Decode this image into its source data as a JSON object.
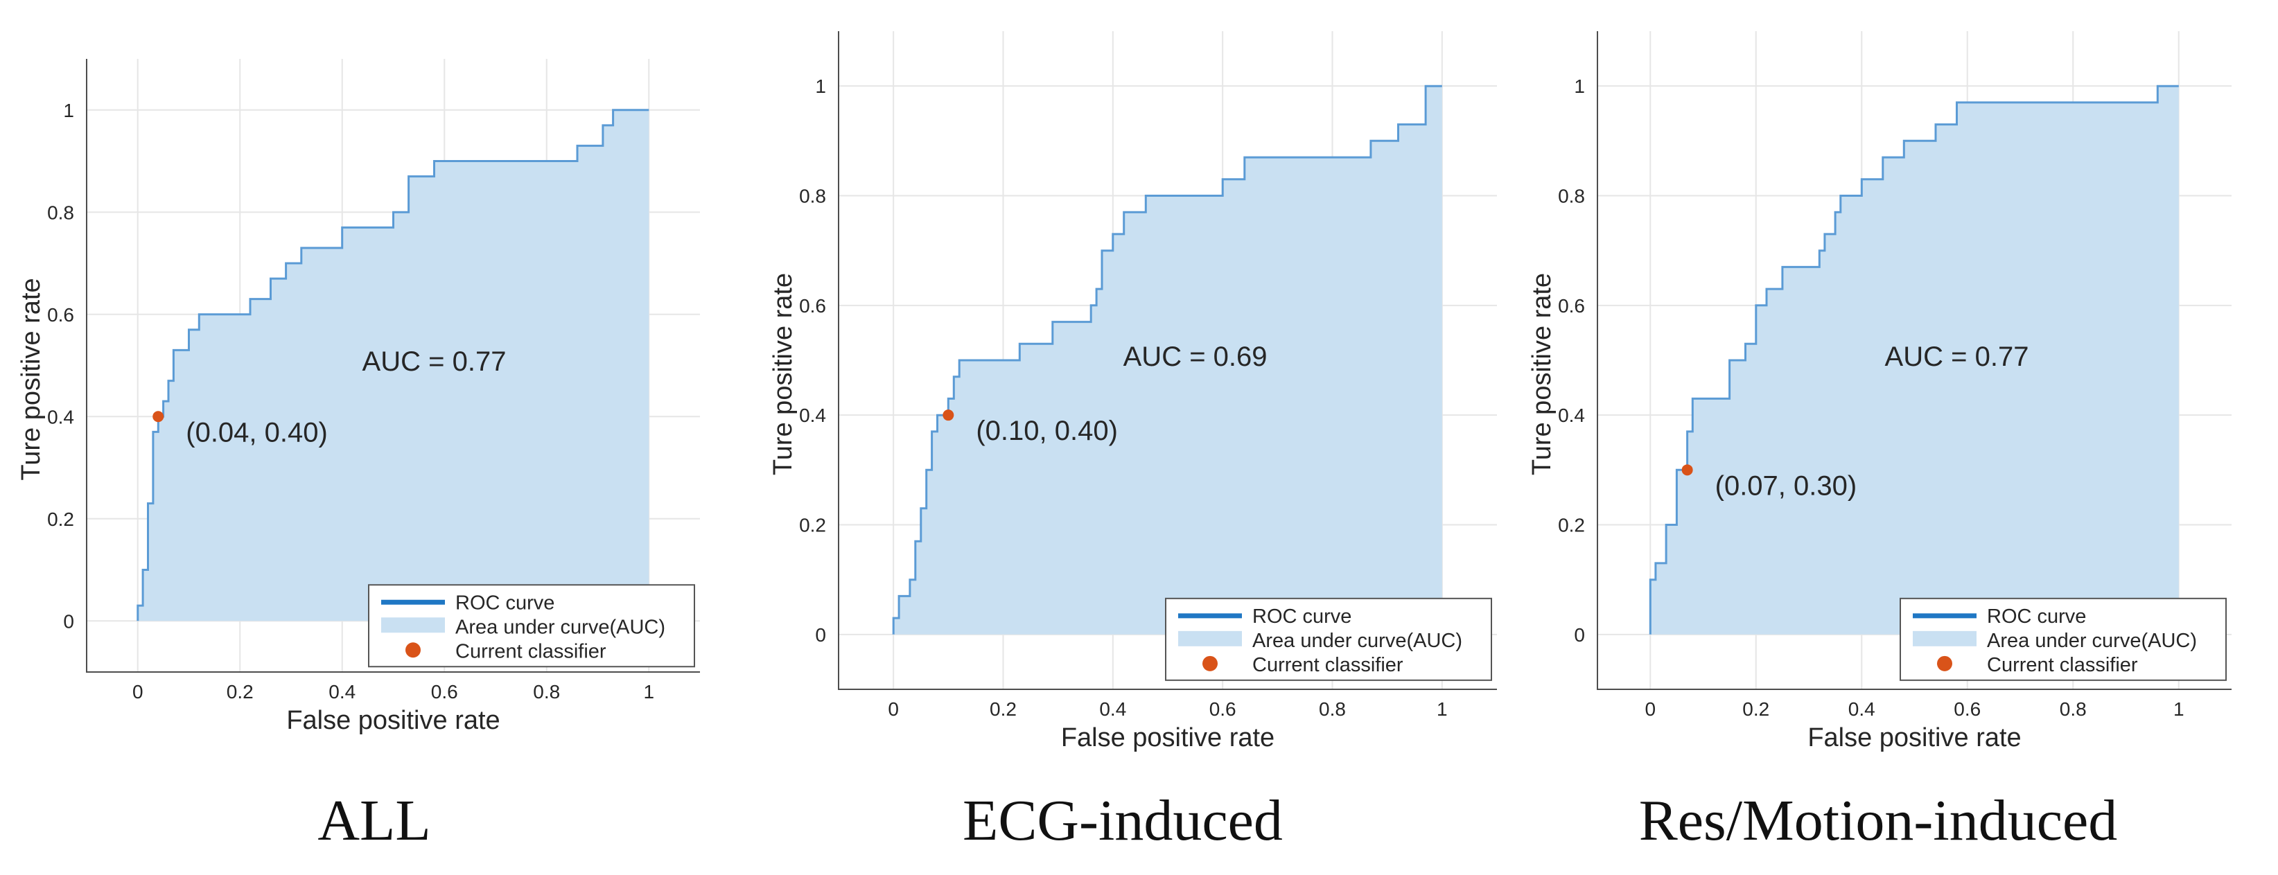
{
  "figure": {
    "colors": {
      "roc_line": "#5b9bd5",
      "auc_fill": "#c9e0f2",
      "legend_line": "#1f77c4",
      "classifier_marker": "#d95319",
      "axis": "#4d4d4d",
      "grid": "#e6e6e6"
    }
  },
  "chart_data": [
    {
      "type": "area",
      "caption": "ALL",
      "xlabel": "False positive rate",
      "ylabel": "Ture positive rate",
      "xlim": [
        -0.1,
        1.1
      ],
      "ylim": [
        -0.1,
        1.1
      ],
      "xticks": [
        "0",
        "0.2",
        "0.4",
        "0.6",
        "0.8",
        "1"
      ],
      "yticks": [
        "0",
        "0.2",
        "0.4",
        "0.6",
        "0.8",
        "1"
      ],
      "auc_label": "AUC = 0.77",
      "auc_label_pos": [
        0.58,
        0.49
      ],
      "classifier_point": [
        0.04,
        0.4
      ],
      "classifier_label": "(0.04, 0.40)",
      "legend": {
        "position": "bottom-right",
        "entries": [
          "ROC curve",
          "Area under curve(AUC)",
          "Current classifier"
        ]
      },
      "series": [
        {
          "name": "ROC curve",
          "x": [
            0,
            0,
            0.01,
            0.01,
            0.02,
            0.02,
            0.03,
            0.03,
            0.04,
            0.04,
            0.05,
            0.05,
            0.06,
            0.06,
            0.07,
            0.07,
            0.1,
            0.1,
            0.12,
            0.12,
            0.22,
            0.22,
            0.26,
            0.26,
            0.29,
            0.29,
            0.32,
            0.32,
            0.4,
            0.4,
            0.5,
            0.5,
            0.53,
            0.53,
            0.58,
            0.58,
            0.86,
            0.86,
            0.91,
            0.91,
            0.93,
            0.93,
            1.0
          ],
          "y": [
            0,
            0.03,
            0.03,
            0.1,
            0.1,
            0.23,
            0.23,
            0.37,
            0.37,
            0.4,
            0.4,
            0.43,
            0.43,
            0.47,
            0.47,
            0.53,
            0.53,
            0.57,
            0.57,
            0.6,
            0.6,
            0.63,
            0.63,
            0.67,
            0.67,
            0.7,
            0.7,
            0.73,
            0.73,
            0.77,
            0.77,
            0.8,
            0.8,
            0.87,
            0.87,
            0.9,
            0.9,
            0.93,
            0.93,
            0.97,
            0.97,
            1.0,
            1.0
          ]
        }
      ]
    },
    {
      "type": "area",
      "caption": "ECG-induced",
      "xlabel": "False positive rate",
      "ylabel": "Ture positive rate",
      "xlim": [
        -0.1,
        1.1
      ],
      "ylim": [
        -0.1,
        1.1
      ],
      "xticks": [
        "0",
        "0.2",
        "0.4",
        "0.6",
        "0.8",
        "1"
      ],
      "yticks": [
        "0",
        "0.2",
        "0.4",
        "0.6",
        "0.8",
        "1"
      ],
      "auc_label": "AUC = 0.69",
      "auc_label_pos": [
        0.55,
        0.49
      ],
      "classifier_point": [
        0.1,
        0.4
      ],
      "classifier_label": "(0.10, 0.40)",
      "legend": {
        "position": "bottom-right",
        "entries": [
          "ROC curve",
          "Area under curve(AUC)",
          "Current classifier"
        ]
      },
      "series": [
        {
          "name": "ROC curve",
          "x": [
            0,
            0,
            0.01,
            0.01,
            0.03,
            0.03,
            0.04,
            0.04,
            0.05,
            0.05,
            0.06,
            0.06,
            0.07,
            0.07,
            0.08,
            0.08,
            0.1,
            0.1,
            0.11,
            0.11,
            0.12,
            0.12,
            0.23,
            0.23,
            0.29,
            0.29,
            0.36,
            0.36,
            0.37,
            0.37,
            0.38,
            0.38,
            0.4,
            0.4,
            0.42,
            0.42,
            0.46,
            0.46,
            0.6,
            0.6,
            0.64,
            0.64,
            0.87,
            0.87,
            0.92,
            0.92,
            0.97,
            0.97,
            1.0
          ],
          "y": [
            0,
            0.03,
            0.03,
            0.07,
            0.07,
            0.1,
            0.1,
            0.17,
            0.17,
            0.23,
            0.23,
            0.3,
            0.3,
            0.37,
            0.37,
            0.4,
            0.4,
            0.43,
            0.43,
            0.47,
            0.47,
            0.5,
            0.5,
            0.53,
            0.53,
            0.57,
            0.57,
            0.6,
            0.6,
            0.63,
            0.63,
            0.7,
            0.7,
            0.73,
            0.73,
            0.77,
            0.77,
            0.8,
            0.8,
            0.83,
            0.83,
            0.87,
            0.87,
            0.9,
            0.9,
            0.93,
            0.93,
            1.0,
            1.0
          ]
        }
      ]
    },
    {
      "type": "area",
      "caption": "Res/Motion-induced",
      "xlabel": "False positive rate",
      "ylabel": "Ture positive rate",
      "xlim": [
        -0.1,
        1.1
      ],
      "ylim": [
        -0.1,
        1.1
      ],
      "xticks": [
        "0",
        "0.2",
        "0.4",
        "0.6",
        "0.8",
        "1"
      ],
      "yticks": [
        "0",
        "0.2",
        "0.4",
        "0.6",
        "0.8",
        "1"
      ],
      "auc_label": "AUC = 0.77",
      "auc_label_pos": [
        0.58,
        0.49
      ],
      "classifier_point": [
        0.07,
        0.3
      ],
      "classifier_label": "(0.07, 0.30)",
      "legend": {
        "position": "bottom-right",
        "entries": [
          "ROC curve",
          "Area under curve(AUC)",
          "Current classifier"
        ]
      },
      "series": [
        {
          "name": "ROC curve",
          "x": [
            0,
            0,
            0.01,
            0.01,
            0.03,
            0.03,
            0.05,
            0.05,
            0.07,
            0.07,
            0.08,
            0.08,
            0.08,
            0.08,
            0.15,
            0.15,
            0.18,
            0.18,
            0.2,
            0.2,
            0.22,
            0.22,
            0.25,
            0.25,
            0.32,
            0.32,
            0.33,
            0.33,
            0.35,
            0.35,
            0.36,
            0.36,
            0.4,
            0.4,
            0.44,
            0.44,
            0.48,
            0.48,
            0.54,
            0.54,
            0.58,
            0.58,
            0.66,
            0.66,
            0.96,
            0.96,
            1.0
          ],
          "y": [
            0,
            0.1,
            0.1,
            0.13,
            0.13,
            0.2,
            0.2,
            0.3,
            0.3,
            0.37,
            0.37,
            0.4,
            0.4,
            0.43,
            0.43,
            0.5,
            0.5,
            0.53,
            0.53,
            0.6,
            0.6,
            0.63,
            0.63,
            0.67,
            0.67,
            0.7,
            0.7,
            0.73,
            0.73,
            0.77,
            0.77,
            0.8,
            0.8,
            0.83,
            0.83,
            0.87,
            0.87,
            0.9,
            0.9,
            0.93,
            0.93,
            0.97,
            0.97,
            0.97,
            0.97,
            1.0,
            1.0
          ]
        }
      ]
    }
  ]
}
